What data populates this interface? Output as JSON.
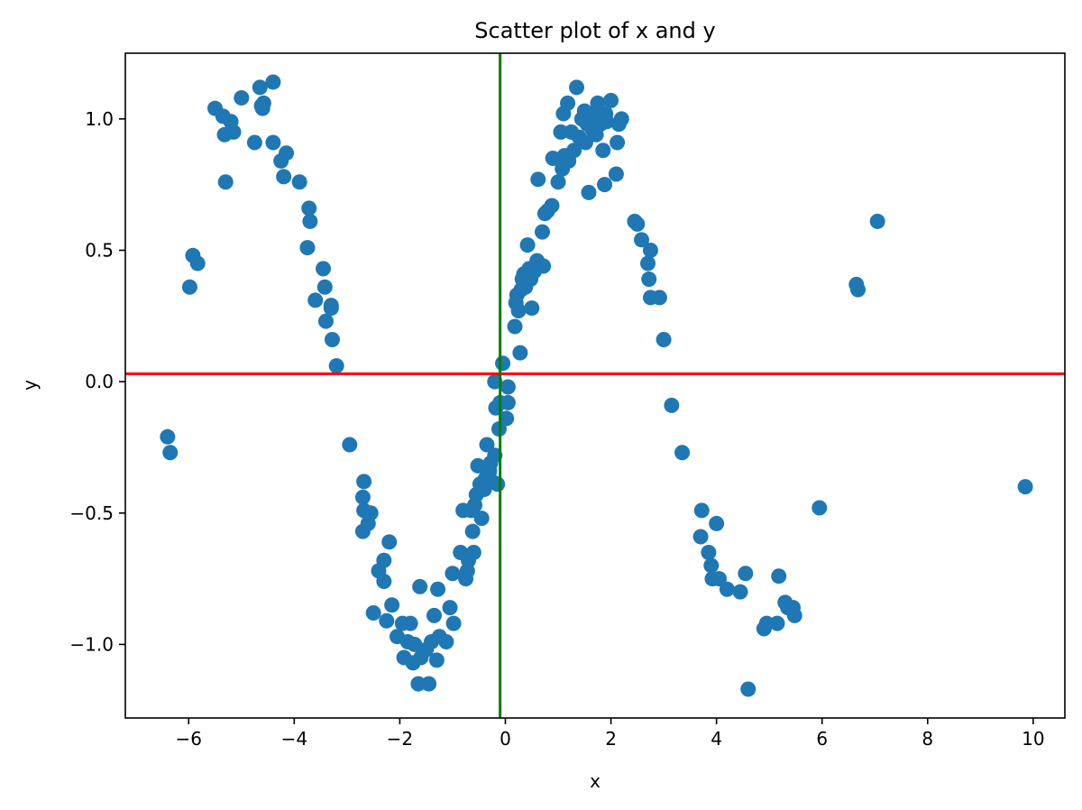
{
  "chart_data": {
    "type": "scatter",
    "title": "Scatter plot of x and y",
    "xlabel": "x",
    "ylabel": "y",
    "xlim": [
      -7.2,
      10.6
    ],
    "ylim": [
      -1.28,
      1.25
    ],
    "xticks": [
      -6,
      -4,
      -2,
      0,
      2,
      4,
      6,
      8,
      10
    ],
    "xtick_labels": [
      "−6",
      "−4",
      "−2",
      "0",
      "2",
      "4",
      "6",
      "8",
      "10"
    ],
    "yticks": [
      -1.0,
      -0.5,
      0.0,
      0.5,
      1.0
    ],
    "ytick_labels": [
      "−1.0",
      "−0.5",
      "0.0",
      "0.5",
      "1.0"
    ],
    "grid": false,
    "marker_color": "#1f77b4",
    "hline": {
      "y": 0.03,
      "color": "#ff0000"
    },
    "vline": {
      "x": -0.1,
      "color": "#008000"
    },
    "series": [
      {
        "points": [
          [
            -6.4,
            -0.21
          ],
          [
            -6.35,
            -0.27
          ],
          [
            -5.98,
            0.36
          ],
          [
            -5.92,
            0.48
          ],
          [
            -5.83,
            0.45
          ],
          [
            -5.5,
            1.04
          ],
          [
            -5.35,
            1.01
          ],
          [
            -5.32,
            0.94
          ],
          [
            -5.3,
            0.76
          ],
          [
            -5.2,
            0.99
          ],
          [
            -5.15,
            0.95
          ],
          [
            -5.0,
            1.08
          ],
          [
            -4.75,
            0.91
          ],
          [
            -4.65,
            1.12
          ],
          [
            -4.62,
            1.05
          ],
          [
            -4.6,
            1.04
          ],
          [
            -4.58,
            1.06
          ],
          [
            -4.4,
            1.14
          ],
          [
            -4.4,
            0.91
          ],
          [
            -4.25,
            0.84
          ],
          [
            -4.2,
            0.78
          ],
          [
            -4.15,
            0.87
          ],
          [
            -3.9,
            0.76
          ],
          [
            -3.75,
            0.51
          ],
          [
            -3.72,
            0.66
          ],
          [
            -3.7,
            0.61
          ],
          [
            -3.6,
            0.31
          ],
          [
            -3.45,
            0.43
          ],
          [
            -3.42,
            0.36
          ],
          [
            -3.4,
            0.23
          ],
          [
            -3.3,
            0.28
          ],
          [
            -3.3,
            0.29
          ],
          [
            -3.28,
            0.16
          ],
          [
            -3.2,
            0.06
          ],
          [
            -2.95,
            -0.24
          ],
          [
            -2.68,
            -0.38
          ],
          [
            -2.7,
            -0.44
          ],
          [
            -2.68,
            -0.49
          ],
          [
            -2.7,
            -0.57
          ],
          [
            -2.6,
            -0.54
          ],
          [
            -2.55,
            -0.5
          ],
          [
            -2.5,
            -0.88
          ],
          [
            -2.4,
            -0.72
          ],
          [
            -2.3,
            -0.68
          ],
          [
            -2.3,
            -0.76
          ],
          [
            -2.25,
            -0.91
          ],
          [
            -2.2,
            -0.61
          ],
          [
            -2.15,
            -0.85
          ],
          [
            -2.05,
            -0.97
          ],
          [
            -1.95,
            -0.92
          ],
          [
            -1.92,
            -1.05
          ],
          [
            -1.85,
            -0.99
          ],
          [
            -1.8,
            -0.92
          ],
          [
            -1.75,
            -1.07
          ],
          [
            -1.72,
            -1.0
          ],
          [
            -1.65,
            -1.15
          ],
          [
            -1.62,
            -0.78
          ],
          [
            -1.6,
            -1.05
          ],
          [
            -1.5,
            -1.02
          ],
          [
            -1.45,
            -1.15
          ],
          [
            -1.4,
            -0.99
          ],
          [
            -1.35,
            -0.89
          ],
          [
            -1.3,
            -1.06
          ],
          [
            -1.28,
            -0.79
          ],
          [
            -1.25,
            -0.97
          ],
          [
            -1.12,
            -0.99
          ],
          [
            -1.05,
            -0.86
          ],
          [
            -1.0,
            -0.73
          ],
          [
            -0.98,
            -0.92
          ],
          [
            -0.85,
            -0.65
          ],
          [
            -0.8,
            -0.49
          ],
          [
            -0.75,
            -0.75
          ],
          [
            -0.72,
            -0.72
          ],
          [
            -0.7,
            -0.68
          ],
          [
            -0.65,
            -0.49
          ],
          [
            -0.62,
            -0.57
          ],
          [
            -0.6,
            -0.65
          ],
          [
            -0.58,
            -0.47
          ],
          [
            -0.55,
            -0.43
          ],
          [
            -0.52,
            -0.32
          ],
          [
            -0.48,
            -0.39
          ],
          [
            -0.45,
            -0.52
          ],
          [
            -0.4,
            -0.41
          ],
          [
            -0.38,
            -0.37
          ],
          [
            -0.35,
            -0.24
          ],
          [
            -0.3,
            -0.34
          ],
          [
            -0.28,
            -0.31
          ],
          [
            -0.25,
            -0.38
          ],
          [
            -0.2,
            -0.28
          ],
          [
            -0.2,
            -0.0
          ],
          [
            -0.18,
            -0.1
          ],
          [
            -0.15,
            -0.39
          ],
          [
            -0.12,
            -0.18
          ],
          [
            -0.1,
            -0.08
          ],
          [
            -0.05,
            0.07
          ],
          [
            0.02,
            -0.14
          ],
          [
            0.05,
            -0.08
          ],
          [
            0.05,
            -0.02
          ],
          [
            0.18,
            0.21
          ],
          [
            0.2,
            0.3
          ],
          [
            0.22,
            0.33
          ],
          [
            0.25,
            0.27
          ],
          [
            0.28,
            0.11
          ],
          [
            0.3,
            0.35
          ],
          [
            0.32,
            0.39
          ],
          [
            0.35,
            0.41
          ],
          [
            0.38,
            0.36
          ],
          [
            0.42,
            0.52
          ],
          [
            0.45,
            0.43
          ],
          [
            0.48,
            0.39
          ],
          [
            0.5,
            0.28
          ],
          [
            0.55,
            0.42
          ],
          [
            0.6,
            0.46
          ],
          [
            0.62,
            0.77
          ],
          [
            0.7,
            0.57
          ],
          [
            0.72,
            0.44
          ],
          [
            0.75,
            0.64
          ],
          [
            0.8,
            0.65
          ],
          [
            0.88,
            0.67
          ],
          [
            0.9,
            0.85
          ],
          [
            1.0,
            0.76
          ],
          [
            1.05,
            0.95
          ],
          [
            1.08,
            0.81
          ],
          [
            1.1,
            1.02
          ],
          [
            1.12,
            0.86
          ],
          [
            1.18,
            1.06
          ],
          [
            1.2,
            0.84
          ],
          [
            1.25,
            0.95
          ],
          [
            1.3,
            0.88
          ],
          [
            1.35,
            1.12
          ],
          [
            1.4,
            0.93
          ],
          [
            1.45,
            1.0
          ],
          [
            1.5,
            1.03
          ],
          [
            1.52,
            0.91
          ],
          [
            1.55,
            0.98
          ],
          [
            1.58,
            0.72
          ],
          [
            1.6,
            1.02
          ],
          [
            1.65,
            0.96
          ],
          [
            1.7,
            1.01
          ],
          [
            1.72,
            0.94
          ],
          [
            1.75,
            1.06
          ],
          [
            1.8,
            0.98
          ],
          [
            1.85,
            0.88
          ],
          [
            1.88,
            0.75
          ],
          [
            1.9,
            1.02
          ],
          [
            1.92,
            0.99
          ],
          [
            2.0,
            1.07
          ],
          [
            2.1,
            0.79
          ],
          [
            2.12,
            0.91
          ],
          [
            2.15,
            0.98
          ],
          [
            2.2,
            1.0
          ],
          [
            2.45,
            0.61
          ],
          [
            2.5,
            0.6
          ],
          [
            2.58,
            0.54
          ],
          [
            2.7,
            0.45
          ],
          [
            2.72,
            0.39
          ],
          [
            2.75,
            0.5
          ],
          [
            2.75,
            0.32
          ],
          [
            2.92,
            0.32
          ],
          [
            3.0,
            0.16
          ],
          [
            3.15,
            -0.09
          ],
          [
            3.35,
            -0.27
          ],
          [
            3.7,
            -0.59
          ],
          [
            3.72,
            -0.49
          ],
          [
            3.85,
            -0.65
          ],
          [
            3.9,
            -0.7
          ],
          [
            3.92,
            -0.75
          ],
          [
            4.0,
            -0.54
          ],
          [
            4.05,
            -0.75
          ],
          [
            4.2,
            -0.79
          ],
          [
            4.45,
            -0.8
          ],
          [
            4.55,
            -0.73
          ],
          [
            4.6,
            -1.17
          ],
          [
            4.9,
            -0.94
          ],
          [
            4.95,
            -0.92
          ],
          [
            5.15,
            -0.92
          ],
          [
            5.18,
            -0.74
          ],
          [
            5.3,
            -0.84
          ],
          [
            5.35,
            -0.86
          ],
          [
            5.45,
            -0.86
          ],
          [
            5.48,
            -0.89
          ],
          [
            5.95,
            -0.48
          ],
          [
            6.65,
            0.37
          ],
          [
            6.68,
            0.35
          ],
          [
            7.05,
            0.61
          ],
          [
            9.85,
            -0.4
          ]
        ]
      }
    ]
  }
}
